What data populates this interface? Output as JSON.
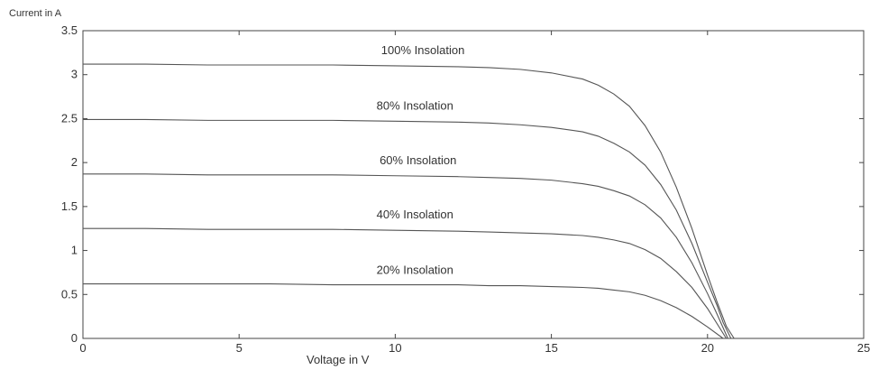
{
  "chart_data": {
    "type": "line",
    "title": "",
    "xlabel": "Voltage in V",
    "ylabel": "Current in A",
    "xlim": [
      0,
      25
    ],
    "ylim": [
      0,
      3.5
    ],
    "x_ticks": [
      "0",
      "5",
      "10",
      "15",
      "20",
      "25"
    ],
    "y_ticks": [
      "0",
      "0.5",
      "1",
      "1.5",
      "2",
      "2.5",
      "3",
      "3.5"
    ],
    "grid": false,
    "legend": "none",
    "line_color": "#555555",
    "series": [
      {
        "name": "100% Insolation",
        "x": [
          0,
          2,
          4,
          6,
          8,
          10,
          12,
          13,
          14,
          15,
          16,
          16.5,
          17,
          17.5,
          18,
          18.5,
          19,
          19.5,
          20,
          20.3,
          20.6,
          20.85
        ],
        "y": [
          3.12,
          3.12,
          3.11,
          3.11,
          3.11,
          3.1,
          3.09,
          3.08,
          3.06,
          3.02,
          2.95,
          2.88,
          2.78,
          2.64,
          2.42,
          2.12,
          1.72,
          1.25,
          0.72,
          0.42,
          0.14,
          0
        ]
      },
      {
        "name": "80% Insolation",
        "x": [
          0,
          2,
          4,
          6,
          8,
          10,
          12,
          13,
          14,
          15,
          16,
          16.5,
          17,
          17.5,
          18,
          18.5,
          19,
          19.5,
          20,
          20.3,
          20.5,
          20.75
        ],
        "y": [
          2.49,
          2.49,
          2.48,
          2.48,
          2.48,
          2.47,
          2.46,
          2.45,
          2.43,
          2.4,
          2.35,
          2.3,
          2.22,
          2.12,
          1.97,
          1.75,
          1.46,
          1.08,
          0.64,
          0.38,
          0.18,
          0
        ]
      },
      {
        "name": "60% Insolation",
        "x": [
          0,
          2,
          4,
          6,
          8,
          10,
          12,
          13,
          14,
          15,
          16,
          16.5,
          17,
          17.5,
          18,
          18.5,
          19,
          19.5,
          20,
          20.3,
          20.65
        ],
        "y": [
          1.87,
          1.87,
          1.86,
          1.86,
          1.86,
          1.85,
          1.84,
          1.83,
          1.82,
          1.8,
          1.76,
          1.73,
          1.68,
          1.62,
          1.52,
          1.37,
          1.15,
          0.86,
          0.51,
          0.28,
          0
        ]
      },
      {
        "name": "40% Insolation",
        "x": [
          0,
          2,
          4,
          6,
          8,
          10,
          12,
          13,
          14,
          15,
          16,
          16.5,
          17,
          17.5,
          18,
          18.5,
          19,
          19.5,
          20,
          20.6
        ],
        "y": [
          1.25,
          1.25,
          1.24,
          1.24,
          1.24,
          1.23,
          1.22,
          1.21,
          1.2,
          1.19,
          1.17,
          1.15,
          1.12,
          1.08,
          1.01,
          0.91,
          0.76,
          0.58,
          0.34,
          0
        ]
      },
      {
        "name": "20% Insolation",
        "x": [
          0,
          2,
          4,
          6,
          8,
          10,
          12,
          13,
          14,
          15,
          16,
          16.5,
          17,
          17.5,
          18,
          18.5,
          19,
          19.5,
          20,
          20.5
        ],
        "y": [
          0.62,
          0.62,
          0.62,
          0.62,
          0.61,
          0.61,
          0.61,
          0.6,
          0.6,
          0.59,
          0.58,
          0.57,
          0.55,
          0.53,
          0.49,
          0.43,
          0.35,
          0.25,
          0.13,
          0
        ]
      }
    ]
  }
}
